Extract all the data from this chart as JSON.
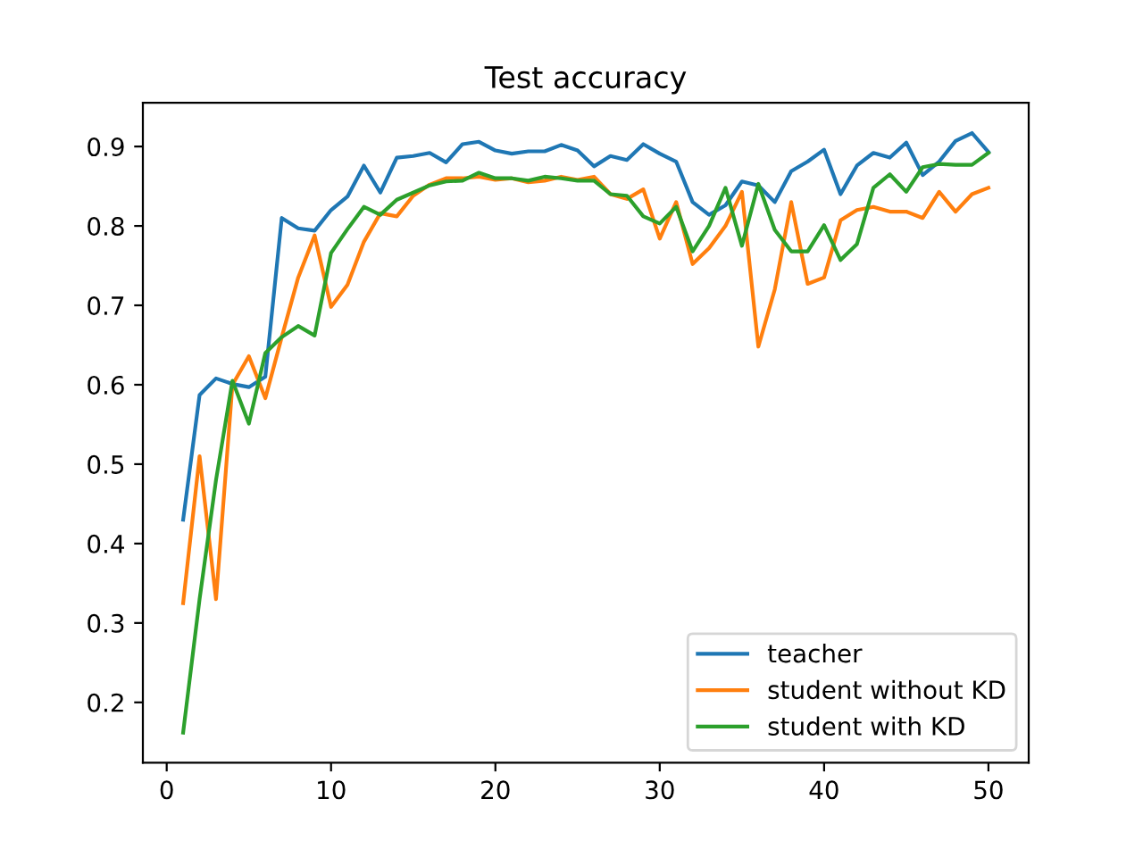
{
  "chart_data": {
    "type": "line",
    "title": "Test accuracy",
    "x": [
      1,
      2,
      3,
      4,
      5,
      6,
      7,
      8,
      9,
      10,
      11,
      12,
      13,
      14,
      15,
      16,
      17,
      18,
      19,
      20,
      21,
      22,
      23,
      24,
      25,
      26,
      27,
      28,
      29,
      30,
      31,
      32,
      33,
      34,
      35,
      36,
      37,
      38,
      39,
      40,
      41,
      42,
      43,
      44,
      45,
      46,
      47,
      48,
      49,
      50
    ],
    "series": [
      {
        "name": "teacher",
        "color": "#1f77b4",
        "values": [
          0.43,
          0.587,
          0.608,
          0.601,
          0.597,
          0.61,
          0.81,
          0.797,
          0.794,
          0.82,
          0.837,
          0.876,
          0.842,
          0.886,
          0.888,
          0.892,
          0.88,
          0.903,
          0.906,
          0.895,
          0.891,
          0.894,
          0.894,
          0.902,
          0.895,
          0.875,
          0.888,
          0.883,
          0.903,
          0.891,
          0.881,
          0.83,
          0.814,
          0.826,
          0.856,
          0.851,
          0.83,
          0.869,
          0.881,
          0.896,
          0.84,
          0.876,
          0.892,
          0.886,
          0.905,
          0.864,
          0.881,
          0.907,
          0.917,
          0.893
        ]
      },
      {
        "name": "student without KD",
        "color": "#ff7f0e",
        "values": [
          0.325,
          0.51,
          0.33,
          0.6,
          0.636,
          0.583,
          0.66,
          0.735,
          0.788,
          0.698,
          0.726,
          0.78,
          0.816,
          0.812,
          0.838,
          0.852,
          0.86,
          0.86,
          0.862,
          0.858,
          0.86,
          0.855,
          0.857,
          0.862,
          0.858,
          0.862,
          0.84,
          0.834,
          0.846,
          0.784,
          0.83,
          0.752,
          0.772,
          0.8,
          0.843,
          0.648,
          0.72,
          0.83,
          0.727,
          0.735,
          0.807,
          0.82,
          0.824,
          0.818,
          0.818,
          0.81,
          0.843,
          0.818,
          0.84,
          0.848
        ]
      },
      {
        "name": "student with KD",
        "color": "#2ca02c",
        "values": [
          0.162,
          0.33,
          0.48,
          0.605,
          0.551,
          0.64,
          0.66,
          0.674,
          0.662,
          0.766,
          0.796,
          0.824,
          0.814,
          0.833,
          0.842,
          0.851,
          0.856,
          0.857,
          0.867,
          0.86,
          0.86,
          0.857,
          0.862,
          0.86,
          0.857,
          0.857,
          0.84,
          0.838,
          0.812,
          0.803,
          0.824,
          0.768,
          0.8,
          0.848,
          0.775,
          0.853,
          0.795,
          0.768,
          0.768,
          0.801,
          0.757,
          0.777,
          0.848,
          0.865,
          0.843,
          0.874,
          0.878,
          0.877,
          0.877,
          0.892
        ]
      }
    ],
    "xlim": [
      -1.45,
      52.45
    ],
    "ylim": [
      0.124,
      0.955
    ],
    "xticks": [
      0,
      10,
      20,
      30,
      40,
      50
    ],
    "yticks": [
      0.2,
      0.3,
      0.4,
      0.5,
      0.6,
      0.7,
      0.8,
      0.9
    ],
    "legend": "lower right",
    "grid": false
  }
}
